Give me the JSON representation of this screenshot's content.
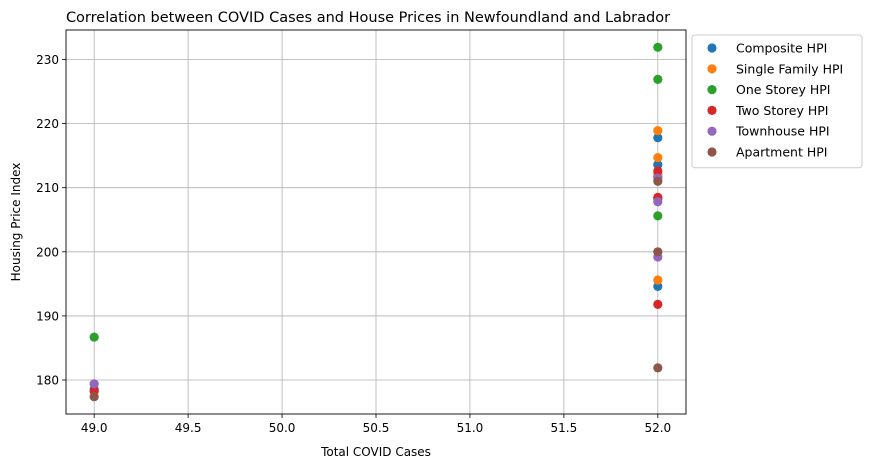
{
  "chart_data": {
    "type": "scatter",
    "title": "Correlation between COVID Cases and House Prices in Newfoundland and Labrador",
    "xlabel": "Total COVID Cases",
    "ylabel": "Housing Price Index",
    "xlim": [
      48.85,
      52.15
    ],
    "ylim": [
      174.7,
      234.6
    ],
    "xticks": [
      49.0,
      49.5,
      50.0,
      50.5,
      51.0,
      51.5,
      52.0
    ],
    "xtick_labels": [
      "49.0",
      "49.5",
      "50.0",
      "50.5",
      "51.0",
      "51.5",
      "52.0"
    ],
    "yticks": [
      180,
      190,
      200,
      210,
      220,
      230
    ],
    "ytick_labels": [
      "180",
      "190",
      "200",
      "210",
      "220",
      "230"
    ],
    "grid": true,
    "legend_position": "outside-top-right",
    "series": [
      {
        "name": "Composite HPI",
        "color": "#1f77b4",
        "points": [
          [
            49,
            178.6
          ],
          [
            52,
            194.6
          ],
          [
            52,
            213.6
          ],
          [
            52,
            217.8
          ],
          [
            52,
            211.7
          ],
          [
            52,
            208.3
          ]
        ]
      },
      {
        "name": "Single Family HPI",
        "color": "#ff7f0e",
        "points": [
          [
            49,
            178.2
          ],
          [
            52,
            195.6
          ],
          [
            52,
            214.7
          ],
          [
            52,
            218.9
          ],
          [
            52,
            212.1
          ]
        ]
      },
      {
        "name": "One Storey HPI",
        "color": "#2ca02c",
        "points": [
          [
            49,
            186.7
          ],
          [
            52,
            205.6
          ],
          [
            52,
            226.9
          ],
          [
            52,
            231.9
          ]
        ]
      },
      {
        "name": "Two Storey HPI",
        "color": "#d62728",
        "points": [
          [
            49,
            178.3
          ],
          [
            52,
            191.8
          ],
          [
            52,
            208.5
          ],
          [
            52,
            212.6
          ]
        ]
      },
      {
        "name": "Townhouse HPI",
        "color": "#9467bd",
        "points": [
          [
            49,
            179.4
          ],
          [
            52,
            199.2
          ],
          [
            52,
            207.8
          ],
          [
            52,
            211.5
          ]
        ]
      },
      {
        "name": "Apartment HPI",
        "color": "#8c564b",
        "points": [
          [
            49,
            177.4
          ],
          [
            52,
            181.9
          ],
          [
            52,
            200.0
          ],
          [
            52,
            211.0
          ]
        ]
      }
    ]
  }
}
